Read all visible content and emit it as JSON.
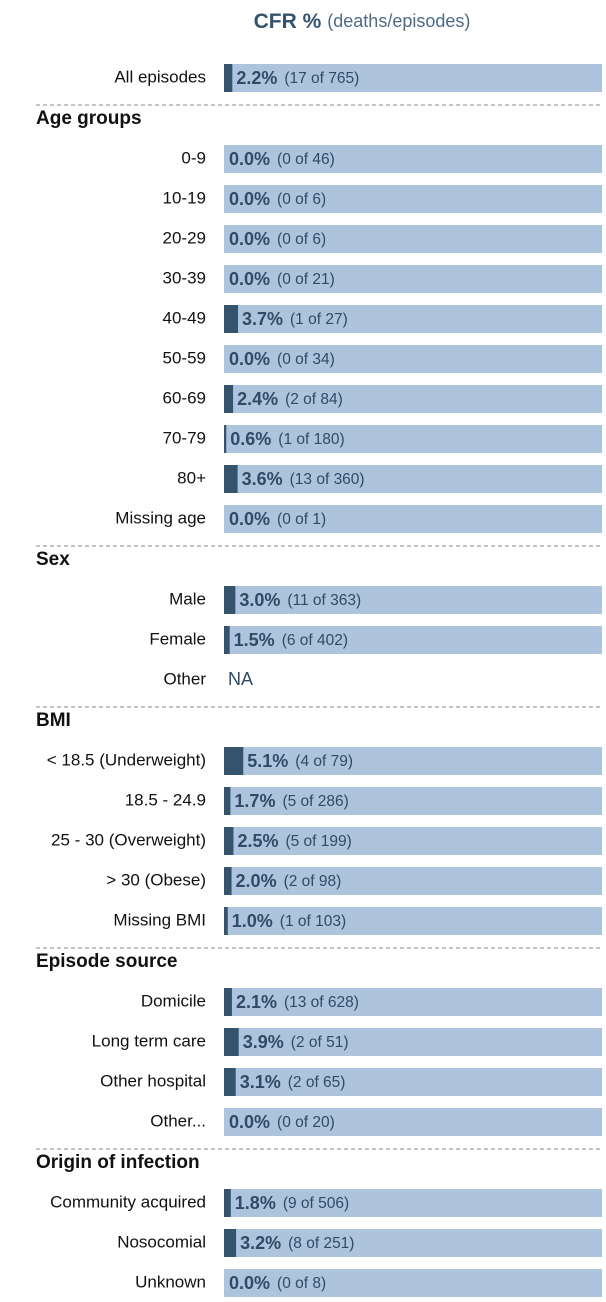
{
  "chart_data": {
    "type": "bar",
    "title": "CFR %",
    "subtitle": "(deaths/episodes)",
    "xlim": [
      0,
      100
    ],
    "color": "#34546e",
    "track_color": "#adc4dc",
    "overall": {
      "label": "All episodes",
      "value": 2.2,
      "value_label": "2.2%",
      "count_label": "(17 of 765)"
    },
    "groups": [
      {
        "name": "Age groups",
        "rows": [
          {
            "label": "0-9",
            "value": 0.0,
            "value_label": "0.0%",
            "count_label": "(0 of 46)"
          },
          {
            "label": "10-19",
            "value": 0.0,
            "value_label": "0.0%",
            "count_label": "(0 of 6)"
          },
          {
            "label": "20-29",
            "value": 0.0,
            "value_label": "0.0%",
            "count_label": "(0 of 6)"
          },
          {
            "label": "30-39",
            "value": 0.0,
            "value_label": "0.0%",
            "count_label": "(0 of 21)"
          },
          {
            "label": "40-49",
            "value": 3.7,
            "value_label": "3.7%",
            "count_label": "(1 of 27)"
          },
          {
            "label": "50-59",
            "value": 0.0,
            "value_label": "0.0%",
            "count_label": "(0 of 34)"
          },
          {
            "label": "60-69",
            "value": 2.4,
            "value_label": "2.4%",
            "count_label": "(2 of 84)"
          },
          {
            "label": "70-79",
            "value": 0.6,
            "value_label": "0.6%",
            "count_label": "(1 of 180)"
          },
          {
            "label": "80+",
            "value": 3.6,
            "value_label": "3.6%",
            "count_label": "(13 of 360)"
          },
          {
            "label": "Missing age",
            "value": 0.0,
            "value_label": "0.0%",
            "count_label": "(0 of 1)"
          }
        ]
      },
      {
        "name": "Sex",
        "rows": [
          {
            "label": "Male",
            "value": 3.0,
            "value_label": "3.0%",
            "count_label": "(11 of 363)"
          },
          {
            "label": "Female",
            "value": 1.5,
            "value_label": "1.5%",
            "count_label": "(6 of 402)"
          },
          {
            "label": "Other",
            "value": null,
            "value_label": "NA"
          }
        ]
      },
      {
        "name": "BMI",
        "rows": [
          {
            "label": "< 18.5 (Underweight)",
            "value": 5.1,
            "value_label": "5.1%",
            "count_label": "(4 of 79)"
          },
          {
            "label": "18.5 - 24.9",
            "value": 1.7,
            "value_label": "1.7%",
            "count_label": "(5 of 286)"
          },
          {
            "label": "25 - 30 (Overweight)",
            "value": 2.5,
            "value_label": "2.5%",
            "count_label": "(5 of 199)"
          },
          {
            "label": "> 30 (Obese)",
            "value": 2.0,
            "value_label": "2.0%",
            "count_label": "(2 of 98)"
          },
          {
            "label": "Missing BMI",
            "value": 1.0,
            "value_label": "1.0%",
            "count_label": "(1 of 103)"
          }
        ]
      },
      {
        "name": "Episode source",
        "rows": [
          {
            "label": "Domicile",
            "value": 2.1,
            "value_label": "2.1%",
            "count_label": "(13 of 628)"
          },
          {
            "label": "Long term care",
            "value": 3.9,
            "value_label": "3.9%",
            "count_label": "(2 of 51)"
          },
          {
            "label": "Other hospital",
            "value": 3.1,
            "value_label": "3.1%",
            "count_label": "(2 of 65)"
          },
          {
            "label": "Other...",
            "value": 0.0,
            "value_label": "0.0%",
            "count_label": "(0 of 20)"
          }
        ]
      },
      {
        "name": "Origin of infection",
        "rows": [
          {
            "label": "Community acquired",
            "value": 1.8,
            "value_label": "1.8%",
            "count_label": "(9 of 506)"
          },
          {
            "label": "Nosocomial",
            "value": 3.2,
            "value_label": "3.2%",
            "count_label": "(8 of 251)"
          },
          {
            "label": "Unknown",
            "value": 0.0,
            "value_label": "0.0%",
            "count_label": "(0 of 8)"
          }
        ]
      }
    ]
  }
}
